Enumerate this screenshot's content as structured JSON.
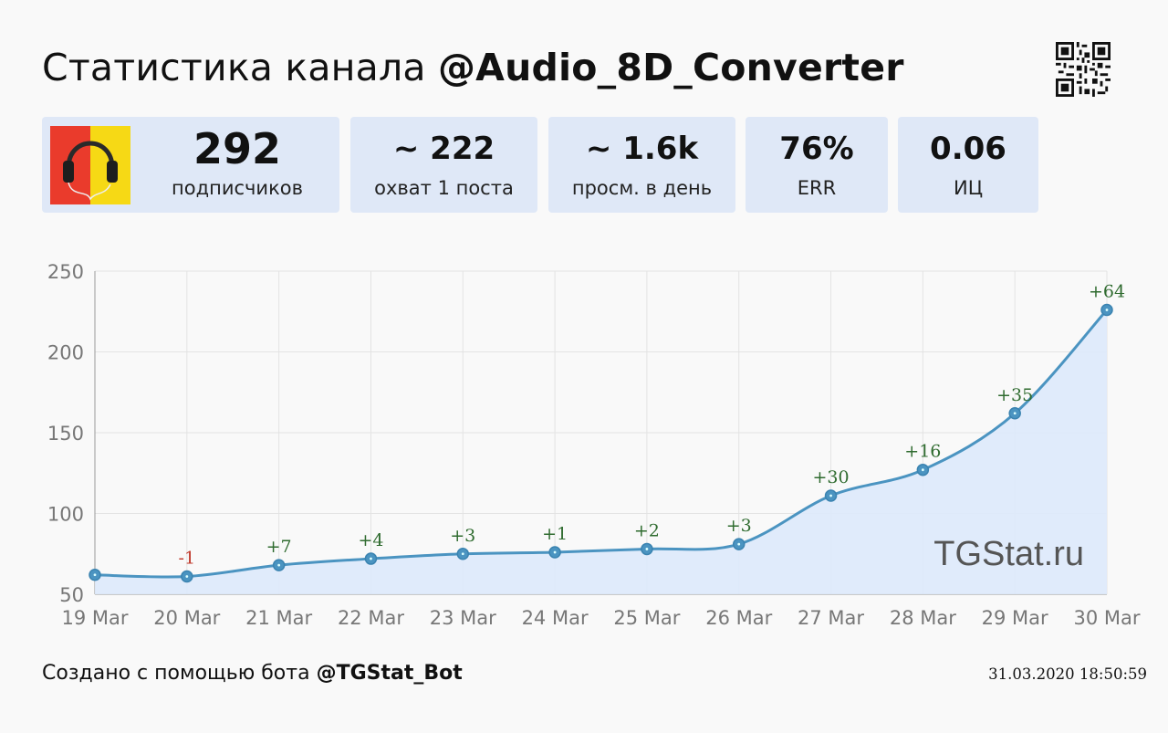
{
  "header": {
    "title_prefix": "Статистика канала",
    "channel": "@Audio_8D_Converter"
  },
  "stats": [
    {
      "value": "292",
      "label": "подписчиков"
    },
    {
      "value": "~ 222",
      "label": "охват 1 поста"
    },
    {
      "value": "~ 1.6k",
      "label": "просм. в день"
    },
    {
      "value": "76%",
      "label": "ERR"
    },
    {
      "value": "0.06",
      "label": "ИЦ"
    }
  ],
  "chart_data": {
    "type": "line",
    "title": "",
    "xlabel": "",
    "ylabel": "",
    "categories": [
      "19 Mar",
      "20 Mar",
      "21 Mar",
      "22 Mar",
      "23 Mar",
      "24 Mar",
      "25 Mar",
      "26 Mar",
      "27 Mar",
      "28 Mar",
      "29 Mar",
      "30 Mar"
    ],
    "values": [
      62,
      61,
      68,
      72,
      75,
      76,
      78,
      81,
      111,
      127,
      162,
      226
    ],
    "deltas": [
      "",
      "-1",
      "+7",
      "+4",
      "+3",
      "+1",
      "+2",
      "+3",
      "+30",
      "+16",
      "+35",
      "+64"
    ],
    "yticks": [
      "250",
      "200",
      "150",
      "100",
      "50"
    ],
    "ylim": [
      50,
      250
    ],
    "grid": true,
    "area_fill": true,
    "colors": {
      "line": "#4b94c1",
      "fill": "#dde9fb",
      "positive": "#2f6b2f",
      "negative": "#c0392b"
    },
    "watermark": "TGStat.ru"
  },
  "footer": {
    "created_prefix": "Создано с помощью бота",
    "bot": "@TGStat_Bot",
    "timestamp": "31.03.2020 18:50:59"
  }
}
